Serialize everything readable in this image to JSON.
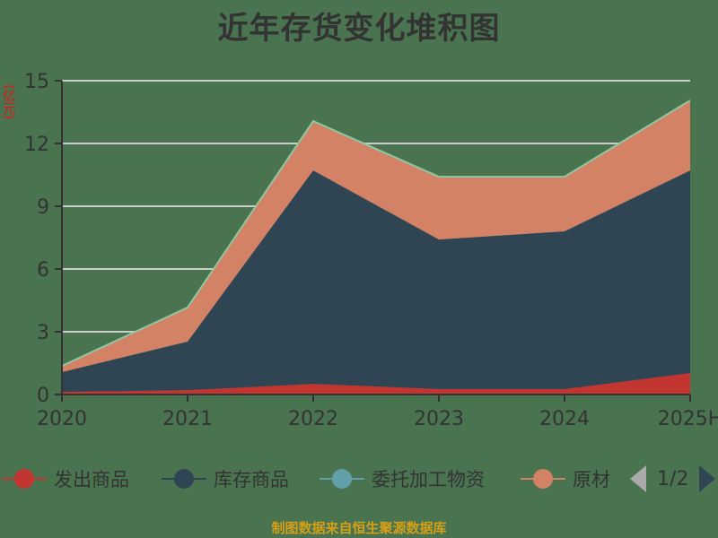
{
  "title": "近年存货变化堆积图",
  "unit_label": "(亿元)",
  "source": "制图数据来自恒生聚源数据库",
  "legend": {
    "items": [
      {
        "label": "发出商品",
        "color": "#c23531"
      },
      {
        "label": "库存商品",
        "color": "#2f4554"
      },
      {
        "label": "委托加工物资",
        "color": "#61a0a8"
      },
      {
        "label": "原材",
        "color": "#d48265"
      }
    ],
    "page": "1/2"
  },
  "colors": {
    "background": "#4a7350",
    "axis": "#333333",
    "grid": "#cccccc",
    "source_text": "#d4a017"
  },
  "chart_data": {
    "type": "area",
    "stacked": true,
    "title": "近年存货变化堆积图",
    "xlabel": "",
    "ylabel": "(亿元)",
    "categories": [
      "2020",
      "2021",
      "2022",
      "2023",
      "2024",
      "2025H"
    ],
    "ylim": [
      0,
      15
    ],
    "yticks": [
      0,
      3,
      6,
      9,
      12,
      15
    ],
    "grid": true,
    "legend_position": "bottom",
    "series": [
      {
        "name": "发出商品",
        "color": "#c23531",
        "values": [
          0.13,
          0.21,
          0.51,
          0.26,
          0.26,
          1.03
        ]
      },
      {
        "name": "库存商品",
        "color": "#2f4554",
        "values": [
          0.94,
          2.32,
          10.2,
          7.15,
          7.54,
          9.68
        ]
      },
      {
        "name": "委托加工物资",
        "color": "#61a0a8",
        "values": [
          0.0,
          0.0,
          0.0,
          0.0,
          0.0,
          0.0
        ]
      },
      {
        "name": "原材料",
        "color": "#d48265",
        "values": [
          0.3,
          1.63,
          2.36,
          3.0,
          2.61,
          3.35
        ]
      }
    ]
  }
}
